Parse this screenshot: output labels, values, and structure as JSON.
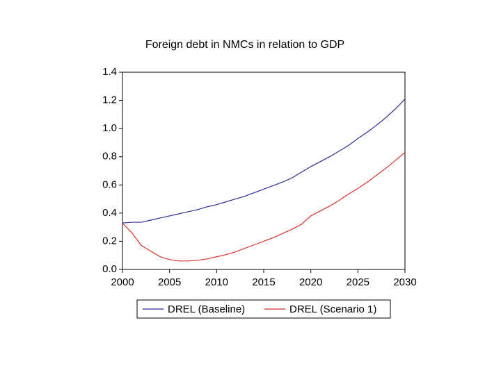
{
  "chart_data": {
    "type": "line",
    "title": "Foreign debt in NMCs in relation to GDP",
    "x": [
      2000,
      2001,
      2002,
      2003,
      2004,
      2005,
      2006,
      2007,
      2008,
      2009,
      2010,
      2011,
      2012,
      2013,
      2014,
      2015,
      2016,
      2017,
      2018,
      2019,
      2020,
      2021,
      2022,
      2023,
      2024,
      2025,
      2026,
      2027,
      2028,
      2029,
      2030
    ],
    "series": [
      {
        "name": "DREL (Baseline)",
        "color": "#2b2b9a",
        "values": [
          0.33,
          0.335,
          0.335,
          0.35,
          0.365,
          0.38,
          0.395,
          0.41,
          0.425,
          0.445,
          0.46,
          0.48,
          0.5,
          0.52,
          0.545,
          0.57,
          0.595,
          0.62,
          0.65,
          0.69,
          0.73,
          0.765,
          0.8,
          0.84,
          0.88,
          0.93,
          0.975,
          1.025,
          1.08,
          1.14,
          1.21
        ]
      },
      {
        "name": "DREL (Scenario 1)",
        "color": "#e0302a",
        "values": [
          0.33,
          0.26,
          0.17,
          0.13,
          0.09,
          0.07,
          0.06,
          0.06,
          0.065,
          0.075,
          0.09,
          0.105,
          0.125,
          0.15,
          0.175,
          0.2,
          0.225,
          0.255,
          0.285,
          0.32,
          0.38,
          0.415,
          0.45,
          0.49,
          0.535,
          0.575,
          0.62,
          0.67,
          0.72,
          0.775,
          0.83
        ]
      }
    ],
    "xlim": [
      2000,
      2030
    ],
    "xticks": [
      2000,
      2005,
      2010,
      2015,
      2020,
      2025,
      2030
    ],
    "ylim": [
      0,
      1.4
    ],
    "yticks": [
      {
        "value": 0,
        "label": "0.0"
      },
      0.2,
      0.4,
      0.6,
      0.8,
      {
        "value": 1,
        "label": "1.0"
      },
      1.2,
      1.4
    ],
    "legend": "bottom"
  }
}
